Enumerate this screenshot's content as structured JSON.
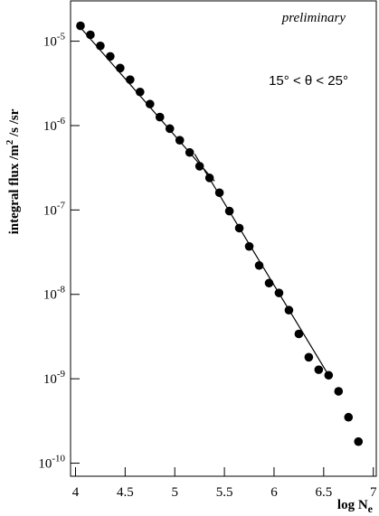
{
  "chart_data": {
    "type": "scatter",
    "annotation_top": "preliminary",
    "annotation": "15° < θ < 25°",
    "xlabel": {
      "text": "log N",
      "sub": "e"
    },
    "ylabel": [
      {
        "text": "integral flux /m"
      },
      {
        "text": "2",
        "sup": true
      },
      {
        "text": " /s /sr"
      }
    ],
    "x": [
      4.05,
      4.15,
      4.25,
      4.35,
      4.45,
      4.55,
      4.65,
      4.75,
      4.85,
      4.95,
      5.05,
      5.15,
      5.25,
      5.35,
      5.45,
      5.55,
      5.65,
      5.75,
      5.85,
      5.95,
      6.05,
      6.15,
      6.25,
      6.35,
      6.45,
      6.55,
      6.65,
      6.75,
      6.85
    ],
    "series": [
      {
        "color": "#000000",
        "values": [
          1.52e-05,
          1.19e-05,
          8.8e-06,
          6.6e-06,
          4.8e-06,
          3.5e-06,
          2.5e-06,
          1.8e-06,
          1.26e-06,
          9.2e-07,
          6.7e-07,
          4.8e-07,
          3.3e-07,
          2.4e-07,
          1.6e-07,
          9.7e-08,
          6.1e-08,
          3.7e-08,
          2.2e-08,
          1.36e-08,
          1.04e-08,
          6.5e-09,
          3.4e-09,
          1.8e-09,
          1.28e-09,
          1.1e-09,
          7.1e-10,
          3.5e-10,
          1.8e-10
        ]
      }
    ],
    "fits": [
      {
        "x": [
          4.05,
          5.4
        ],
        "values": [
          1.45e-05,
          2.2e-07
        ]
      },
      {
        "x": [
          5.2,
          6.55
        ],
        "values": [
          4.6e-07,
          1.1e-09
        ]
      }
    ],
    "log_y": true,
    "xlim": [
      3.95,
      7.03
    ],
    "ylim": [
      7e-11,
      3e-05
    ],
    "xticks": [
      4,
      4.5,
      5,
      5.5,
      6,
      6.5,
      7
    ],
    "yticks": [
      {
        "value": 1e-05,
        "label": "10-5"
      },
      {
        "value": 1e-06,
        "label": "10-6"
      },
      {
        "value": 1e-07,
        "label": "10-7"
      },
      {
        "value": 1e-08,
        "label": "10-8"
      },
      {
        "value": 1e-09,
        "label": "10-9"
      },
      {
        "value": 1e-10,
        "label": "10-10"
      }
    ]
  }
}
